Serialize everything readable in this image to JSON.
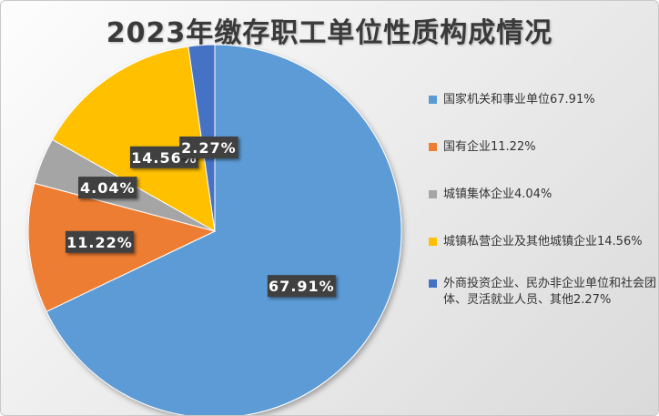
{
  "chart_data": {
    "type": "pie",
    "title": "2023年缴存职工单位性质构成情况",
    "slices": [
      {
        "label": "国家机关和事业单位67.91%",
        "value": 67.91,
        "value_label": "67.91%",
        "color": "#5b9bd5"
      },
      {
        "label": "国有企业11.22%",
        "value": 11.22,
        "value_label": "11.22%",
        "color": "#ed7d31"
      },
      {
        "label": "城镇集体企业4.04%",
        "value": 4.04,
        "value_label": "4.04%",
        "color": "#a5a5a5"
      },
      {
        "label": "城镇私营企业及其他城镇企业14.56%",
        "value": 14.56,
        "value_label": "14.56%",
        "color": "#ffc000"
      },
      {
        "label": "外商投资企业、民办非企业单位和社会团体、灵活就业人员、其他2.27%",
        "value": 2.27,
        "value_label": "2.27%",
        "color": "#4472c4"
      }
    ],
    "legend_position": "right"
  }
}
